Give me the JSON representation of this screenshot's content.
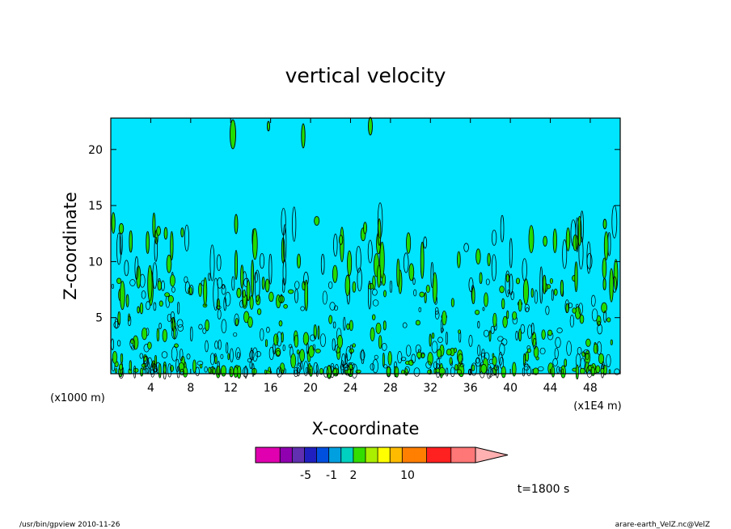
{
  "chart_data": {
    "type": "heatmap",
    "title": "vertical velocity",
    "xlabel": "X-coordinate",
    "ylabel": "Z-coordinate",
    "y_unit_label": "(x1000 m)",
    "x_unit_label": "(x1E4 m)",
    "x_ticks": [
      4,
      8,
      12,
      16,
      20,
      24,
      28,
      32,
      36,
      40,
      44,
      48
    ],
    "y_ticks": [
      5,
      10,
      15,
      20
    ],
    "xlim": [
      0,
      51
    ],
    "ylim": [
      0,
      22.8
    ],
    "grid": false,
    "background_color": "#00e5ff",
    "positive_contour_color": "#22dd00",
    "colorbar": {
      "colors": [
        "#e000b0",
        "#e000b0",
        "#9000b0",
        "#6030b0",
        "#2020c0",
        "#0050e0",
        "#00a0e0",
        "#00d0c0",
        "#33dd00",
        "#aaee00",
        "#ffff00",
        "#ffbb00",
        "#ff7f00",
        "#ff7f00",
        "#ff2020",
        "#ff2020",
        "#ff7777",
        "#ff7777"
      ],
      "extend_color": "#ffb0b0",
      "tick_labels": [
        "-5",
        "-1",
        "2",
        "10"
      ]
    },
    "annotation_time": "t=1800 s"
  },
  "footer": {
    "left": "/usr/bin/gpview   2010-11-26",
    "right": "arare-earth_VelZ.nc@VelZ"
  }
}
